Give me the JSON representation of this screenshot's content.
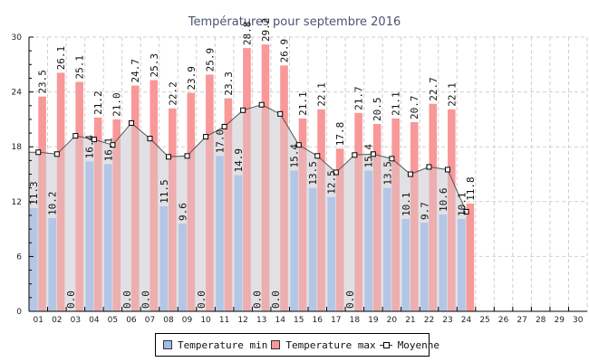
{
  "chart_data": {
    "type": "bar",
    "title": "Températures pour septembre 2016",
    "xlabel": "",
    "ylabel": "",
    "ylim": [
      0,
      30
    ],
    "yticks": [
      0,
      6,
      12,
      18,
      24,
      30
    ],
    "grid": true,
    "legend_position": "bottom-center",
    "categories": [
      "01",
      "02",
      "03",
      "04",
      "05",
      "06",
      "07",
      "08",
      "09",
      "10",
      "11",
      "12",
      "13",
      "14",
      "15",
      "16",
      "17",
      "18",
      "19",
      "20",
      "21",
      "22",
      "23",
      "24",
      "25",
      "26",
      "27",
      "28",
      "29",
      "30"
    ],
    "series": [
      {
        "name": "Temperature min",
        "type": "bar",
        "color": "#a0bdea",
        "values": [
          11.3,
          10.2,
          0.0,
          16.4,
          16.1,
          0.0,
          0.0,
          11.5,
          9.6,
          0.0,
          17.0,
          14.9,
          0.0,
          0.0,
          15.4,
          13.5,
          12.5,
          0.0,
          15.4,
          13.5,
          10.1,
          9.7,
          10.6,
          10.1,
          null,
          null,
          null,
          null,
          null,
          null
        ],
        "labels": [
          "11.3",
          "10.2",
          "0.0",
          "16.4",
          "16.1",
          "0.0",
          "0.0",
          "11.5",
          "9.6",
          "0.0",
          "17.0",
          "14.9",
          "0.0",
          "0.0",
          "15.4",
          "13.5",
          "12.5",
          "0.0",
          "15.4",
          "13.5",
          "10.1",
          "9.7",
          "10.6",
          "10.1"
        ]
      },
      {
        "name": "Temperature max",
        "type": "bar",
        "color": "#f99898",
        "values": [
          23.5,
          26.1,
          25.1,
          21.2,
          21.0,
          24.7,
          25.3,
          22.2,
          23.9,
          25.9,
          23.3,
          28.8,
          29.2,
          26.9,
          21.1,
          22.1,
          17.8,
          21.7,
          20.5,
          21.1,
          20.7,
          22.7,
          22.1,
          11.8,
          null,
          null,
          null,
          null,
          null,
          null
        ],
        "labels": [
          "23.5",
          "26.1",
          "25.1",
          "21.2",
          "21.0",
          "24.7",
          "25.3",
          "22.2",
          "23.9",
          "25.9",
          "23.3",
          "28.8",
          "29.2",
          "26.9",
          "21.1",
          "22.1",
          "17.8",
          "21.7",
          "20.5",
          "21.1",
          "20.7",
          "22.7",
          "22.1",
          "11.8"
        ]
      },
      {
        "name": "Moyenne",
        "type": "area-line",
        "color": "#555555",
        "fill": "#e6e6ea",
        "values": [
          17.4,
          17.2,
          19.2,
          18.8,
          18.2,
          20.6,
          18.9,
          16.9,
          17.0,
          19.1,
          20.2,
          22.0,
          22.6,
          21.6,
          18.2,
          17.0,
          15.2,
          17.1,
          17.2,
          16.7,
          15.0,
          15.8,
          15.5,
          10.9,
          null,
          null,
          null,
          null,
          null,
          null
        ]
      }
    ]
  },
  "legend": {
    "items": [
      {
        "label": "Temperature min",
        "color": "#a0bdea"
      },
      {
        "label": "Temperature max",
        "color": "#f99898"
      },
      {
        "label": "Moyenne",
        "marker": "square-line"
      }
    ]
  }
}
